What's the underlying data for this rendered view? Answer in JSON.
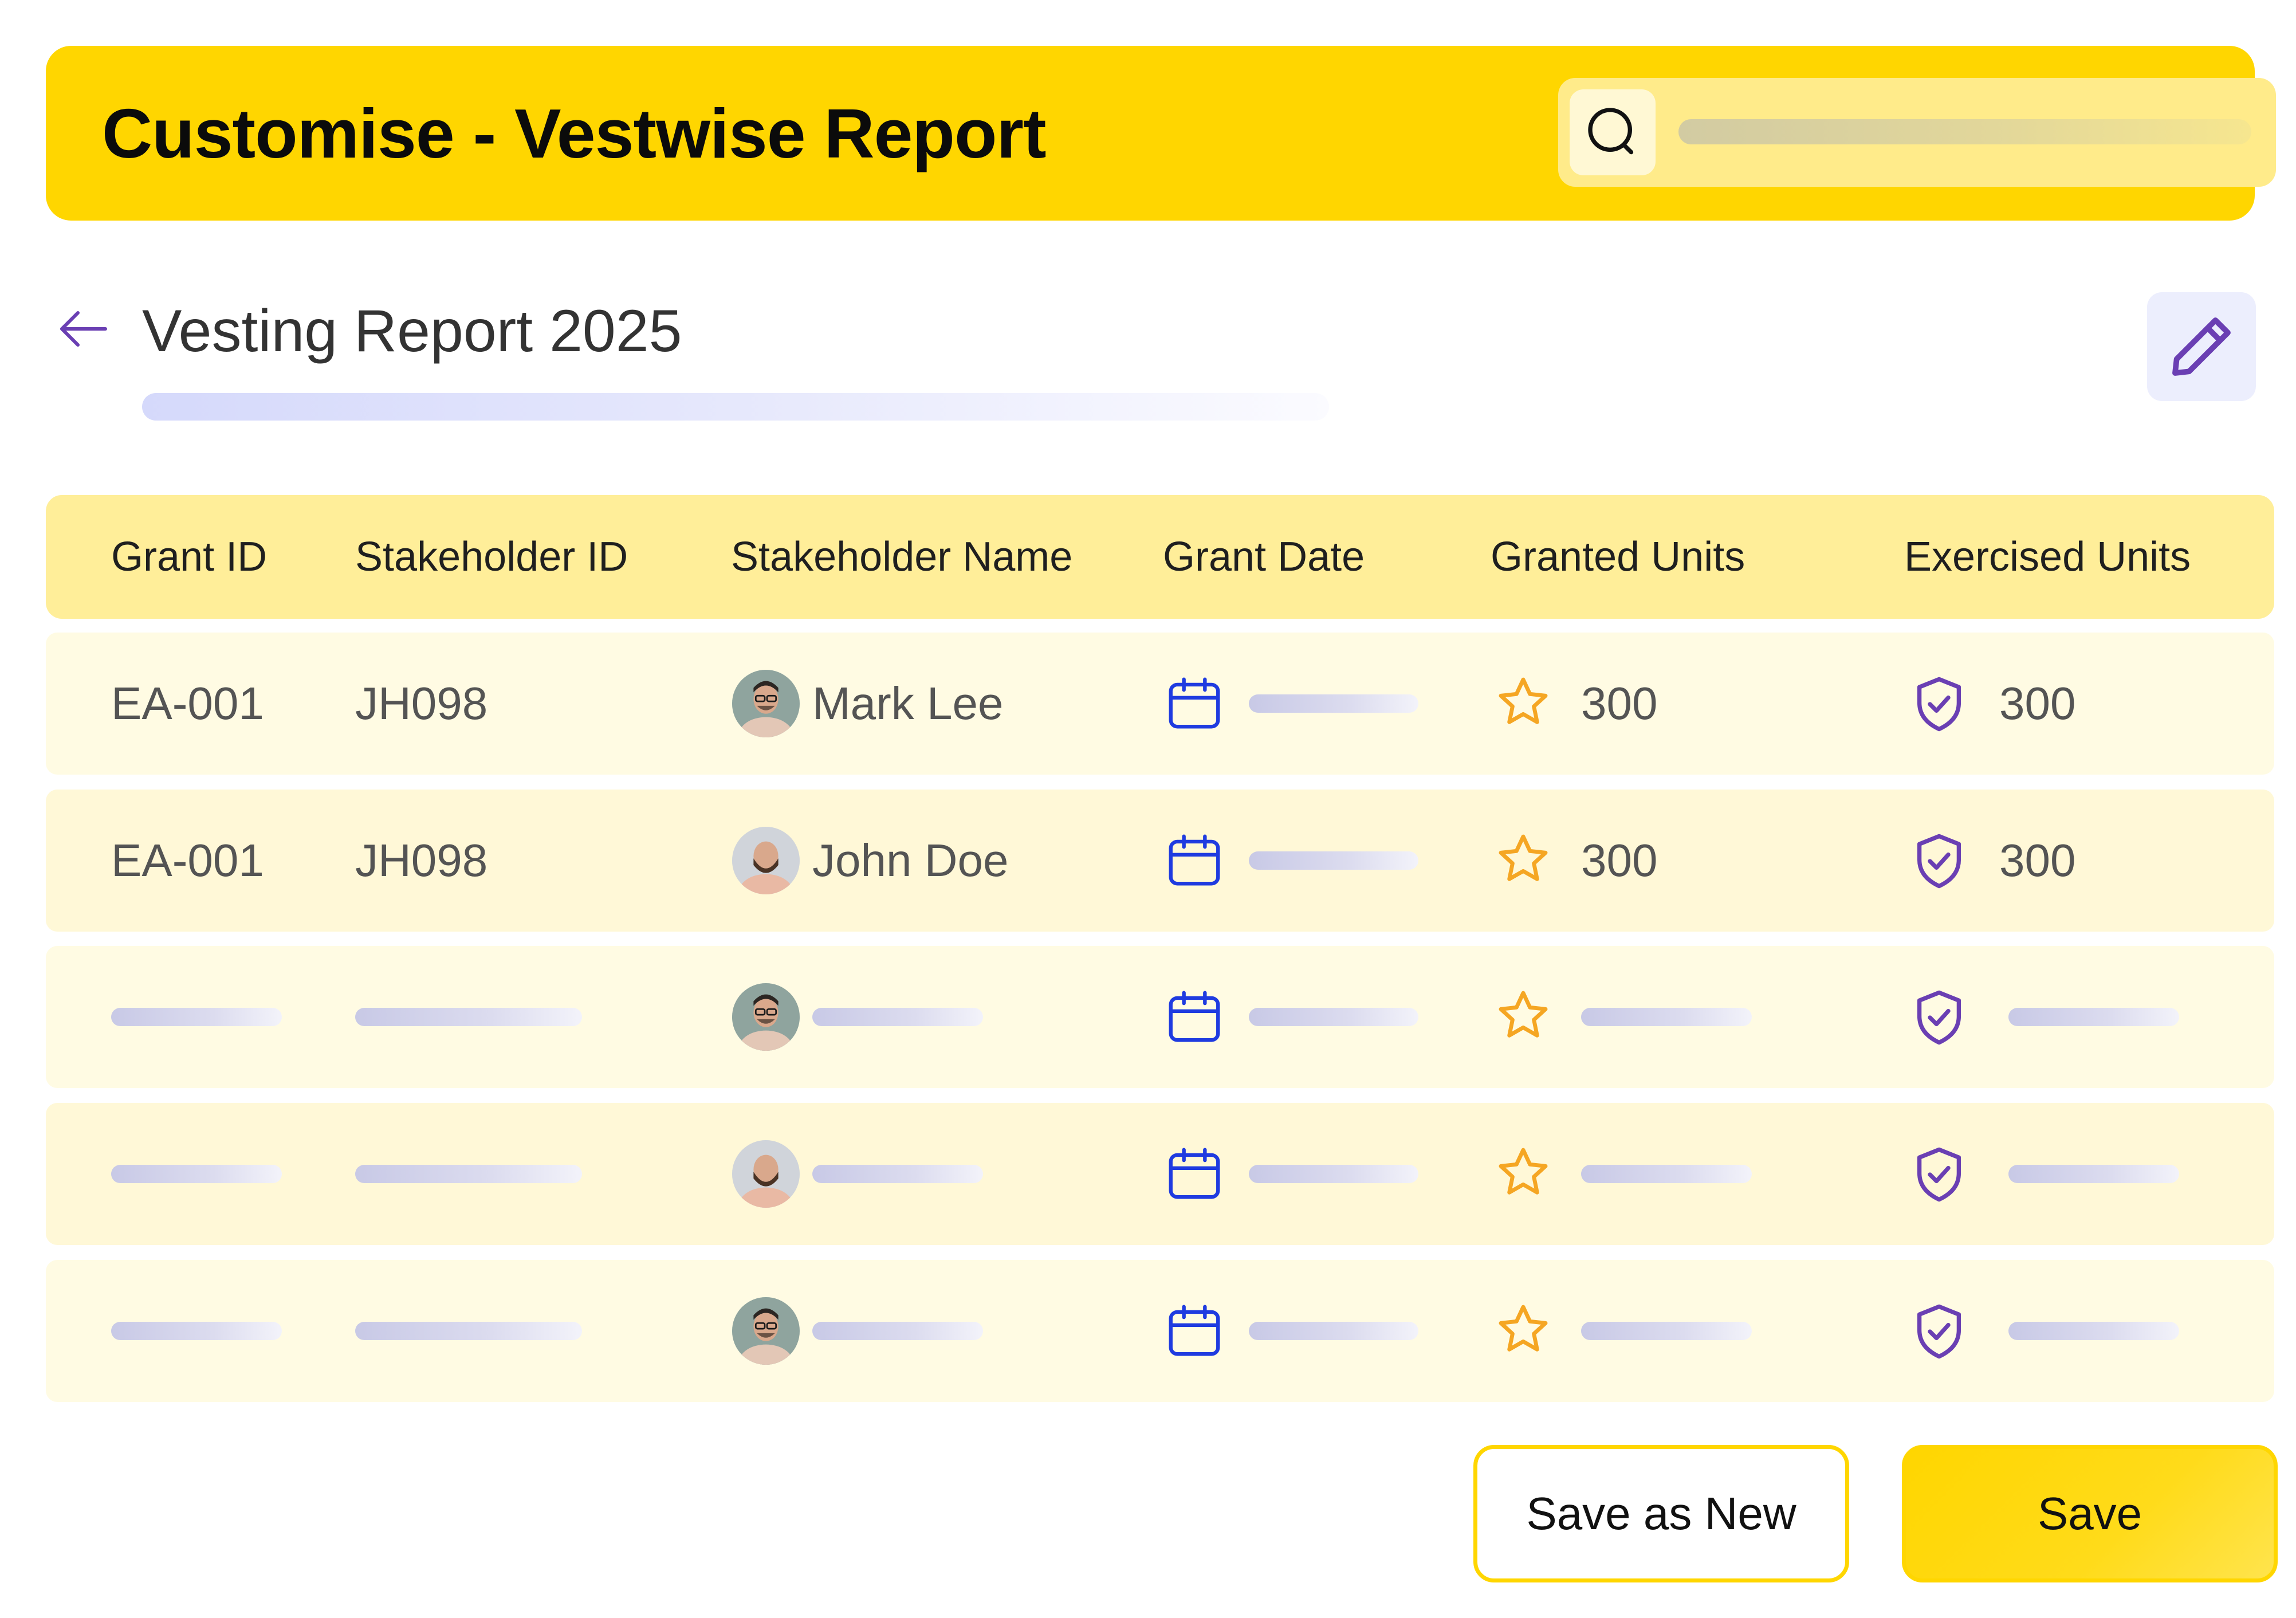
{
  "header": {
    "title": "Customise - Vestwise Report",
    "search_icon": "search-icon"
  },
  "report": {
    "title": "Vesting Report 2025",
    "back_icon": "arrow-left-icon",
    "edit_icon": "pencil-icon"
  },
  "table": {
    "columns": [
      "Grant ID",
      "Stakeholder ID",
      "Stakeholder Name",
      "Grant Date",
      "Granted Units",
      "Exercised Units"
    ],
    "rows": [
      {
        "grant_id": "EA-001",
        "stakeholder_id": "JH098",
        "name": "Mark Lee",
        "avatar": "avatar-man-glasses",
        "granted": "300",
        "exercised": "300"
      },
      {
        "grant_id": "EA-001",
        "stakeholder_id": "JH098",
        "name": "John Doe",
        "avatar": "avatar-man-beard",
        "granted": "300",
        "exercised": "300"
      },
      {
        "grant_id": "",
        "stakeholder_id": "",
        "name": "",
        "avatar": "avatar-man-glasses",
        "granted": "",
        "exercised": ""
      },
      {
        "grant_id": "",
        "stakeholder_id": "",
        "name": "",
        "avatar": "avatar-man-beard",
        "granted": "",
        "exercised": ""
      },
      {
        "grant_id": "",
        "stakeholder_id": "",
        "name": "",
        "avatar": "avatar-man-glasses",
        "granted": "",
        "exercised": ""
      }
    ],
    "icons": {
      "grant_date": "calendar-icon",
      "granted_units": "star-icon",
      "exercised_units": "shield-check-icon"
    }
  },
  "actions": {
    "save_as_new": "Save as New",
    "save": "Save"
  },
  "colors": {
    "brand_yellow": "#FFD600",
    "header_row": "#FFEE99",
    "row_bg": "#FFFBE3",
    "calendar_blue": "#1F3BE0",
    "star_orange": "#F5A623",
    "shield_purple": "#6A3FB3"
  }
}
